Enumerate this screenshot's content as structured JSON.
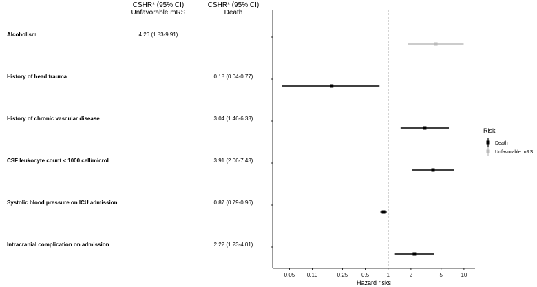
{
  "chart_data": {
    "type": "forest",
    "column_headers": [
      {
        "line1": "CSHR* (95% CI)",
        "line2": "Unfavorable mRS"
      },
      {
        "line1": "CSHR* (95% CI)",
        "line2": "Death"
      }
    ],
    "rows": [
      {
        "label": "Alcoholism",
        "series": "Unfavorable mRS",
        "text": "4.26 (1.83-9.91)",
        "hr": 4.26,
        "lower": 1.83,
        "upper": 9.91
      },
      {
        "label": "History of head trauma",
        "series": "Death",
        "text": "0.18 (0.04-0.77)",
        "hr": 0.18,
        "lower": 0.04,
        "upper": 0.77
      },
      {
        "label": "History of chronic vascular disease",
        "series": "Death",
        "text": "3.04 (1.46-6.33)",
        "hr": 3.04,
        "lower": 1.46,
        "upper": 6.33
      },
      {
        "label": "CSF leukocyte count < 1000 cell/microL",
        "series": "Death",
        "text": "3.91 (2.06-7.43)",
        "hr": 3.91,
        "lower": 2.06,
        "upper": 7.43
      },
      {
        "label": "Systolic blood pressure on ICU admission",
        "series": "Death",
        "text": "0.87 (0.79-0.96)",
        "hr": 0.87,
        "lower": 0.79,
        "upper": 0.96
      },
      {
        "label": "Intracranial complication on admission",
        "series": "Death",
        "text": "2.22 (1.23-4.01)",
        "hr": 2.22,
        "lower": 1.23,
        "upper": 4.01
      }
    ],
    "x_axis": {
      "label": "Hazard risks",
      "scale": "log",
      "ticks": [
        0.05,
        0.1,
        0.25,
        0.5,
        1,
        2,
        5,
        10
      ],
      "tick_labels": [
        "0.05",
        "0.10",
        "0.25",
        "0.5",
        "1",
        "2",
        "5",
        "10"
      ],
      "range": [
        0.03,
        14
      ],
      "reference": 1
    },
    "legend": {
      "title": "Risk",
      "placement": "right",
      "items": [
        {
          "name": "Death",
          "color": "#000000"
        },
        {
          "name": "Unfavorable mRS",
          "color": "#bbbbbb"
        }
      ]
    }
  }
}
